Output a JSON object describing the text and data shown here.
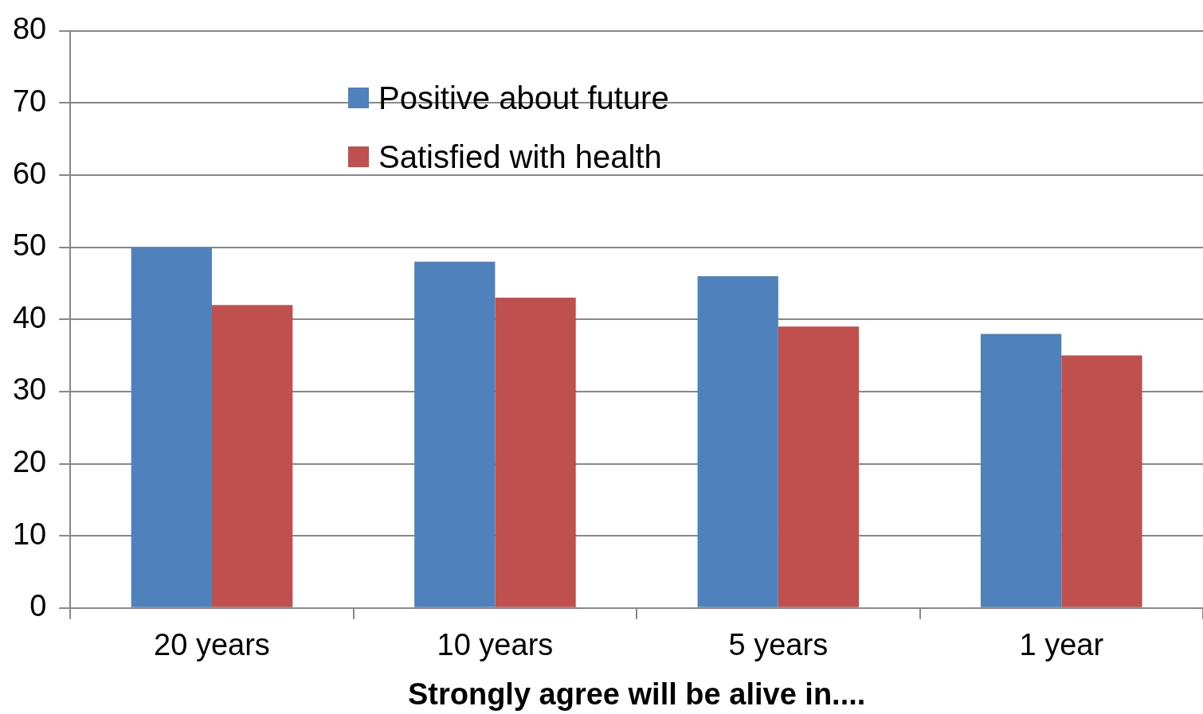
{
  "chart_data": {
    "type": "bar",
    "xlabel": "Strongly agree will be alive in....",
    "categories": [
      "20 years",
      "10 years",
      "5 years",
      "1 year"
    ],
    "series": [
      {
        "name": "Positive about future",
        "color": "#4f81bd",
        "values": [
          50,
          48,
          46,
          38
        ]
      },
      {
        "name": "Satisfied with health",
        "color": "#c0504d",
        "values": [
          42,
          43,
          39,
          35
        ]
      }
    ],
    "ylim": [
      0,
      80
    ],
    "yticks": [
      0,
      10,
      20,
      30,
      40,
      50,
      60,
      70,
      80
    ],
    "grid": "y",
    "legend": "top"
  }
}
